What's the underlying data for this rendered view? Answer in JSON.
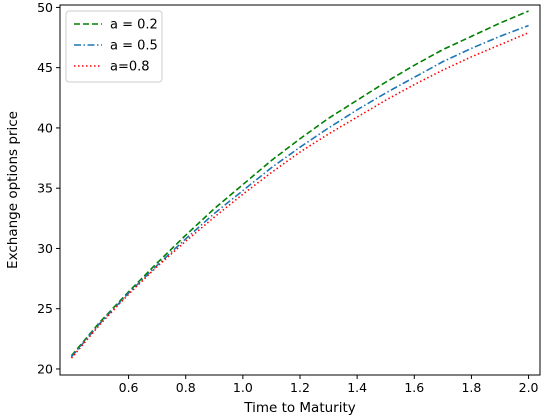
{
  "chart_data": {
    "type": "line",
    "title": "",
    "xlabel": "Time to Maturity",
    "ylabel": "Exchange options price",
    "xlim": [
      0.36,
      2.04
    ],
    "ylim": [
      19.5,
      50.2
    ],
    "xticks": [
      0.6,
      0.8,
      1.0,
      1.2,
      1.4,
      1.6,
      1.8,
      2.0
    ],
    "xtick_labels": [
      "0.6",
      "0.8",
      "1.0",
      "1.2",
      "1.4",
      "1.6",
      "1.8",
      "2.0"
    ],
    "yticks": [
      20,
      25,
      30,
      35,
      40,
      45,
      50
    ],
    "ytick_labels": [
      "20",
      "25",
      "30",
      "35",
      "40",
      "45",
      "50"
    ],
    "grid": false,
    "legend_position": "upper-left",
    "x": [
      0.4,
      0.5,
      0.6,
      0.7,
      0.8,
      0.9,
      1.0,
      1.1,
      1.2,
      1.3,
      1.4,
      1.5,
      1.6,
      1.7,
      1.8,
      1.9,
      2.0
    ],
    "series": [
      {
        "label": "a = 0.2",
        "color": "#008000",
        "style": "dashed",
        "values": [
          21.1,
          23.9,
          26.4,
          28.8,
          31.1,
          33.3,
          35.3,
          37.3,
          39.1,
          40.8,
          42.3,
          43.8,
          45.2,
          46.5,
          47.6,
          48.7,
          49.7
        ]
      },
      {
        "label": "a = 0.5",
        "color": "#1f77b4",
        "style": "dashdot",
        "values": [
          21.0,
          23.8,
          26.3,
          28.6,
          30.8,
          32.9,
          34.8,
          36.7,
          38.4,
          40.0,
          41.5,
          42.9,
          44.2,
          45.5,
          46.6,
          47.6,
          48.5
        ]
      },
      {
        "label": "a=0.8",
        "color": "#ff0000",
        "style": "dotted",
        "values": [
          20.9,
          23.7,
          26.2,
          28.5,
          30.6,
          32.6,
          34.5,
          36.3,
          38.0,
          39.5,
          40.9,
          42.3,
          43.6,
          44.8,
          45.9,
          46.9,
          47.9
        ]
      }
    ]
  }
}
